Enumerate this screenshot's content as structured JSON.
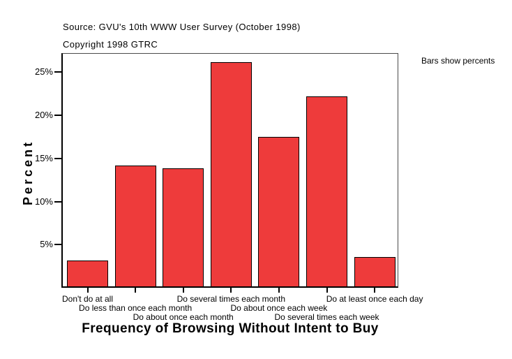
{
  "header": {
    "source_line": "Source: GVU's 10th WWW User Survey (October 1998)",
    "copyright_line": "Copyright 1998 GTRC"
  },
  "annotation": "Bars show percents",
  "chart_data": {
    "type": "bar",
    "title": "Frequency of Browsing Without Intent to Buy",
    "xlabel": "",
    "ylabel": "Percent",
    "categories": [
      "Don't do at all",
      "Do less than once each month",
      "Do about once each month",
      "Do several times each month",
      "Do about once each week",
      "Do several times each week",
      "Do at least once each day"
    ],
    "values": [
      3.0,
      14.0,
      13.7,
      26.0,
      17.3,
      22.0,
      3.4
    ],
    "ylim": [
      0,
      27.2
    ],
    "yticks": [
      {
        "value": 5,
        "label": "5%"
      },
      {
        "value": 10,
        "label": "10%"
      },
      {
        "value": 15,
        "label": "15%"
      },
      {
        "value": 20,
        "label": "20%"
      },
      {
        "value": 25,
        "label": "25%"
      }
    ],
    "grid": false,
    "legend": "none",
    "bar_color": "#EE3B3B",
    "bar_border_color": "#000000",
    "axis_color": "#000000",
    "frame_color": "#4A4A4A"
  }
}
